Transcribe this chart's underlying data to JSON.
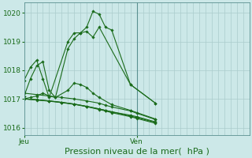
{
  "background_color": "#cce8e8",
  "grid_color": "#aacccc",
  "line_color": "#1a6b1a",
  "marker_color": "#1a6b1a",
  "xlabel": "Pression niveau de la mer(  hPa )",
  "xlabel_fontsize": 8,
  "ylim": [
    1015.75,
    1020.35
  ],
  "yticks": [
    1016,
    1017,
    1018,
    1019,
    1020
  ],
  "vline_x": 18,
  "xlim": [
    0,
    36
  ],
  "xtick_positions": [
    0,
    18
  ],
  "xtick_labels": [
    "Jeu",
    "Ven"
  ],
  "num_grid_x": 19,
  "series": [
    {
      "x": [
        0,
        1,
        2,
        3,
        4,
        7,
        8,
        9,
        10,
        11,
        12,
        13,
        14,
        17,
        21
      ],
      "y": [
        1017.65,
        1018.1,
        1018.35,
        1017.7,
        1017.05,
        1019.0,
        1019.3,
        1019.3,
        1019.5,
        1020.05,
        1019.95,
        1019.5,
        1019.4,
        1017.5,
        1016.85
      ]
    },
    {
      "x": [
        0,
        1,
        2,
        3,
        4,
        5,
        7,
        8,
        9,
        10,
        11,
        12,
        17,
        21
      ],
      "y": [
        1017.1,
        1017.7,
        1018.15,
        1018.3,
        1017.3,
        1017.05,
        1018.75,
        1019.1,
        1019.3,
        1019.35,
        1019.15,
        1019.5,
        1017.5,
        1016.85
      ]
    },
    {
      "x": [
        0,
        1,
        2,
        3,
        4,
        5,
        7,
        8,
        9,
        10,
        11,
        12,
        14,
        17,
        21
      ],
      "y": [
        1017.0,
        1017.05,
        1017.1,
        1017.2,
        1017.1,
        1017.05,
        1017.3,
        1017.55,
        1017.5,
        1017.4,
        1017.2,
        1017.05,
        1016.8,
        1016.6,
        1016.3
      ]
    },
    {
      "x": [
        0,
        2,
        4,
        6,
        8,
        10,
        12,
        13,
        14,
        17,
        18,
        21
      ],
      "y": [
        1017.0,
        1016.97,
        1016.93,
        1016.88,
        1016.82,
        1016.74,
        1016.65,
        1016.6,
        1016.55,
        1016.43,
        1016.38,
        1016.2
      ]
    },
    {
      "x": [
        0,
        2,
        4,
        6,
        8,
        10,
        12,
        13,
        14,
        17,
        18,
        21
      ],
      "y": [
        1017.0,
        1016.97,
        1016.93,
        1016.88,
        1016.82,
        1016.74,
        1016.65,
        1016.6,
        1016.55,
        1016.4,
        1016.35,
        1016.18
      ]
    },
    {
      "x": [
        0,
        2,
        4,
        6,
        8,
        10,
        12,
        13,
        14,
        17,
        18,
        21
      ],
      "y": [
        1017.0,
        1016.96,
        1016.92,
        1016.87,
        1016.81,
        1016.73,
        1016.63,
        1016.58,
        1016.52,
        1016.38,
        1016.32,
        1016.15
      ]
    },
    {
      "x": [
        0,
        2,
        4,
        6,
        8,
        10,
        12,
        13,
        14,
        17,
        18,
        21
      ],
      "y": [
        1017.2,
        1017.15,
        1017.1,
        1017.05,
        1017.0,
        1016.93,
        1016.85,
        1016.78,
        1016.72,
        1016.58,
        1016.5,
        1016.28
      ]
    }
  ]
}
